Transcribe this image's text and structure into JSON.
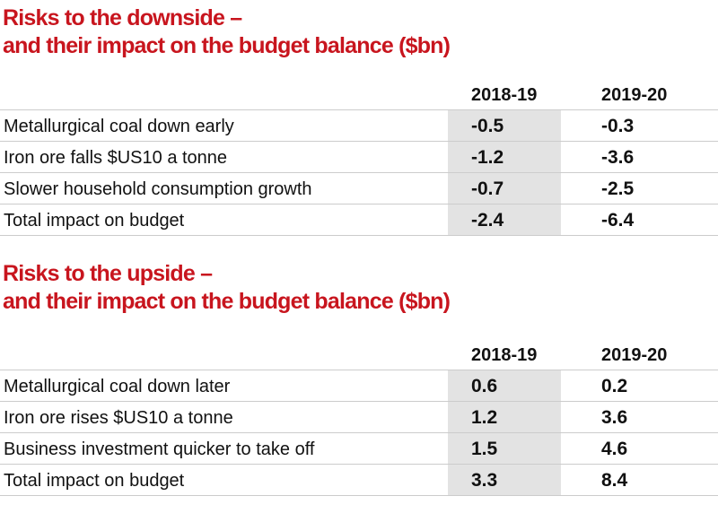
{
  "colors": {
    "accent_red": "#c8151e",
    "shaded_column": "#e3e3e3",
    "row_line": "#cccccc",
    "text": "#111111"
  },
  "tables": [
    {
      "title_line1": "Risks to the downside –",
      "title_line2": "and their impact on the budget balance ($bn)",
      "columns": [
        "2018-19",
        "2019-20"
      ],
      "rows": [
        {
          "label": "Metallurgical coal down early",
          "values": [
            "-0.5",
            "-0.3"
          ]
        },
        {
          "label": "Iron ore falls $US10 a tonne",
          "values": [
            "-1.2",
            "-3.6"
          ]
        },
        {
          "label": "Slower household consumption growth",
          "values": [
            "-0.7",
            "-2.5"
          ]
        },
        {
          "label": "Total impact on budget",
          "values": [
            "-2.4",
            "-6.4"
          ]
        }
      ]
    },
    {
      "title_line1": "Risks to the upside –",
      "title_line2": "and their impact on the budget balance ($bn)",
      "columns": [
        "2018-19",
        "2019-20"
      ],
      "rows": [
        {
          "label": "Metallurgical coal down later",
          "values": [
            "0.6",
            "0.2"
          ]
        },
        {
          "label": "Iron ore rises $US10 a tonne",
          "values": [
            "1.2",
            "3.6"
          ]
        },
        {
          "label": "Business investment quicker to take off",
          "values": [
            "1.5",
            "4.6"
          ]
        },
        {
          "label": "Total impact on budget",
          "values": [
            "3.3",
            "8.4"
          ]
        }
      ]
    }
  ],
  "chart_data": [
    {
      "type": "table",
      "title": "Risks to the downside – and their impact on the budget balance ($bn)",
      "columns": [
        "",
        "2018-19",
        "2019-20"
      ],
      "rows": [
        [
          "Metallurgical coal down early",
          -0.5,
          -0.3
        ],
        [
          "Iron ore falls $US10 a tonne",
          -1.2,
          -3.6
        ],
        [
          "Slower household consumption growth",
          -0.7,
          -2.5
        ],
        [
          "Total impact on budget",
          -2.4,
          -6.4
        ]
      ],
      "layout_hints": {
        "shaded_column": "2018-19",
        "values_bold": true
      }
    },
    {
      "type": "table",
      "title": "Risks to the upside – and their impact on the budget balance ($bn)",
      "columns": [
        "",
        "2018-19",
        "2019-20"
      ],
      "rows": [
        [
          "Metallurgical coal down later",
          0.6,
          0.2
        ],
        [
          "Iron ore rises $US10 a tonne",
          1.2,
          3.6
        ],
        [
          "Business investment quicker to take off",
          1.5,
          4.6
        ],
        [
          "Total impact on budget",
          3.3,
          8.4
        ]
      ],
      "layout_hints": {
        "shaded_column": "2018-19",
        "values_bold": true
      }
    }
  ]
}
